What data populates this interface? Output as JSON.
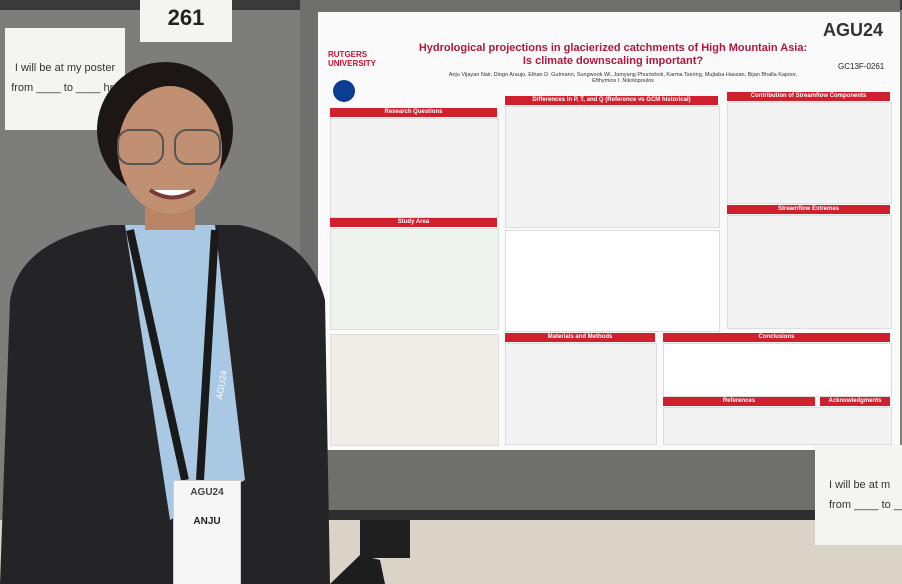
{
  "booth_number": "261",
  "left_sign": {
    "line1": "I will be at my poster",
    "line2": "from ____ to ____ hrs"
  },
  "poster": {
    "institution": "RUTGERS UNIVERSITY",
    "title": "Hydrological projections in glacierized catchments of High Mountain Asia: Is climate downscaling important?",
    "conference": "AGU24",
    "authors": "Anju Vijayan Nair, Diogo Araujo, Ethan D. Gutmann, Sungwook Wi, Jamyang Phuntshok, Karma Tsering, Mujtaba Hassan, Bijan Bhalla Kapoor, Efthymios I. Nikolopoulos",
    "abstract_id": "GC13F-0261",
    "sections": [
      "Research Questions",
      "Study Area",
      "Differences in P, T, and Q (Reference vs GCM historical)",
      "Contribution of Streamflow Components",
      "Streamflow Extremes",
      "Materials and Methods",
      "Conclusions",
      "References",
      "Acknowledgments"
    ]
  },
  "badge": {
    "conference": "AGU24",
    "name": "ANJU"
  },
  "lanyard": "AGU24",
  "right_sign": {
    "line1": "I will be at m",
    "line2": "from ____ to ___"
  }
}
